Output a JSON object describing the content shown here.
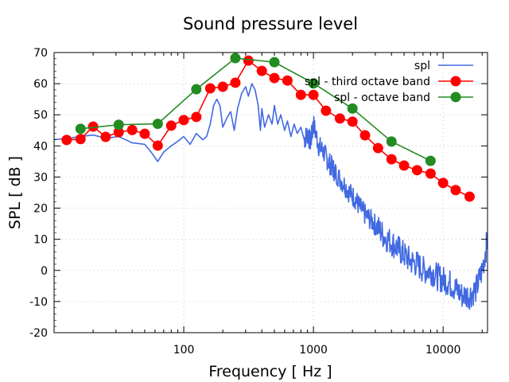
{
  "chart_data": {
    "type": "line",
    "title": "Sound pressure level",
    "xlabel": "Frequency [ Hz ]",
    "ylabel": "SPL [ dB ]",
    "xscale": "log",
    "xlim": [
      10,
      22000
    ],
    "ylim": [
      -20,
      70
    ],
    "xticks": [
      100,
      1000,
      10000
    ],
    "xtick_labels": [
      "100",
      "1000",
      "10000"
    ],
    "yticks": [
      -20,
      -10,
      0,
      10,
      20,
      30,
      40,
      50,
      60,
      70
    ],
    "ytick_labels": [
      "-20",
      "-10",
      "0",
      "10",
      "20",
      "30",
      "40",
      "50",
      "60",
      "70"
    ],
    "grid": true,
    "legend_position": "top-right",
    "series": [
      {
        "name": "spl",
        "color": "#4169e1",
        "marker": "none",
        "x": [
          10,
          13,
          16,
          20,
          25,
          31.5,
          40,
          50,
          56,
          63,
          70,
          80,
          90,
          100,
          112,
          125,
          140,
          150,
          160,
          170,
          180,
          190,
          200,
          215,
          230,
          245,
          260,
          280,
          300,
          315,
          335,
          355,
          375,
          390,
          400,
          420,
          450,
          480,
          500,
          530,
          560,
          600,
          630,
          670,
          710,
          750,
          800,
          850,
          900,
          950,
          1000,
          1100,
          1200,
          1300,
          1400,
          1500,
          1700,
          1900,
          2100,
          2300,
          2500,
          2800,
          3100,
          3500,
          4000,
          4500,
          5000,
          5600,
          6300,
          7100,
          8000,
          9000,
          10000,
          11200,
          12500,
          14000,
          16000,
          18000,
          20000,
          22000
        ],
        "y": [
          42,
          42.5,
          43,
          43.5,
          42.5,
          43,
          41,
          40.5,
          38,
          35,
          38,
          40,
          41.5,
          43,
          40.5,
          44,
          42,
          43,
          47,
          53,
          55,
          53,
          46,
          49,
          51,
          45,
          52,
          57,
          59,
          56,
          60,
          58,
          53,
          45,
          52,
          46,
          50,
          47,
          53,
          47,
          50,
          45,
          48,
          43,
          47,
          44,
          46,
          42,
          44,
          41,
          47,
          40,
          38,
          35,
          33,
          31,
          28,
          25,
          23,
          20,
          18,
          16,
          14,
          11,
          9,
          7,
          5,
          3,
          2,
          0,
          0,
          -2,
          -3,
          -4,
          -6,
          -8,
          -8,
          -6,
          0,
          10
        ]
      },
      {
        "name": "spl - third octave band",
        "color": "#ff0000",
        "marker": "circle",
        "x": [
          12.5,
          16,
          20,
          25,
          31.5,
          40,
          50,
          63,
          80,
          100,
          125,
          160,
          200,
          250,
          315,
          400,
          500,
          630,
          800,
          1000,
          1250,
          1600,
          2000,
          2500,
          3150,
          4000,
          5000,
          6300,
          8000,
          10000,
          12500,
          16000
        ],
        "y": [
          41.9,
          42.2,
          46.2,
          42.9,
          44.4,
          45.1,
          43.9,
          40.1,
          46.5,
          48.3,
          49.3,
          58.5,
          59.0,
          60.3,
          67.4,
          64.1,
          61.8,
          61.0,
          56.4,
          56.4,
          51.3,
          48.8,
          47.8,
          43.4,
          39.3,
          35.7,
          33.7,
          32.2,
          31.1,
          28.1,
          25.8,
          23.7
        ]
      },
      {
        "name": "spl - octave band",
        "color": "#228b22",
        "marker": "circle",
        "x": [
          16,
          31.5,
          63,
          125,
          250,
          500,
          1000,
          2000,
          4000,
          8000
        ],
        "y": [
          45.5,
          46.8,
          47.1,
          58.2,
          68.2,
          66.9,
          60.1,
          52.0,
          41.4,
          35.2
        ]
      }
    ]
  }
}
